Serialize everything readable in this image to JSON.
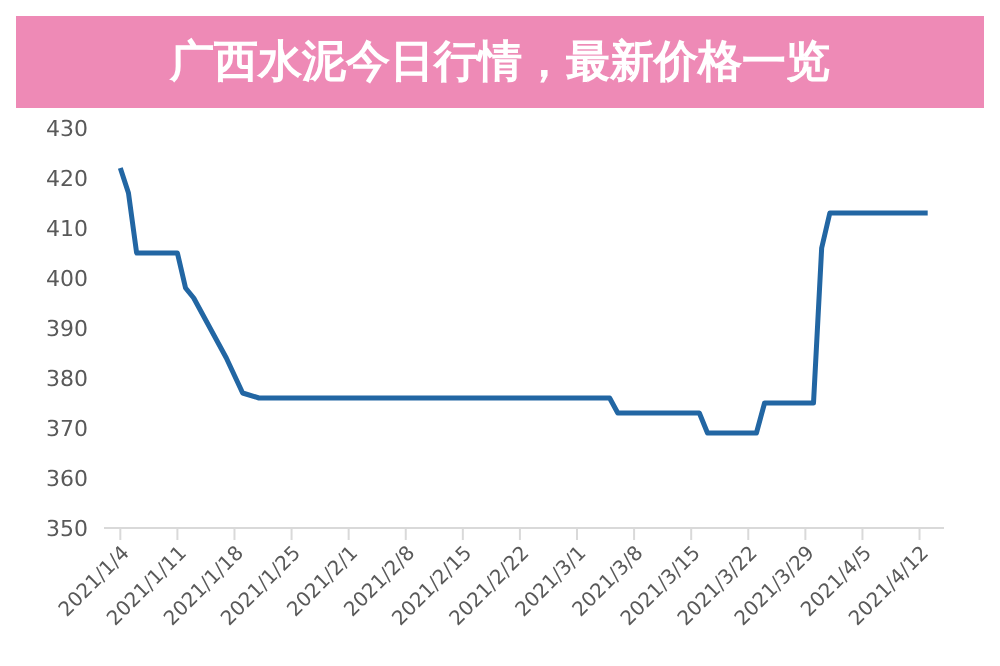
{
  "chart_data": {
    "type": "line",
    "title": "广西水泥今日行情，最新价格一览",
    "x": [
      "2021-01-04",
      "2021-01-05",
      "2021-01-06",
      "2021-01-11",
      "2021-01-12",
      "2021-01-13",
      "2021-01-17",
      "2021-01-19",
      "2021-01-21",
      "2021-03-05",
      "2021-03-06",
      "2021-03-16",
      "2021-03-17",
      "2021-03-23",
      "2021-03-24",
      "2021-03-30",
      "2021-03-31",
      "2021-04-01",
      "2021-04-13"
    ],
    "series": [
      {
        "color": "#2266a3",
        "values": [
          422,
          417,
          405,
          405,
          398,
          396,
          384,
          377,
          376,
          376,
          373,
          373,
          369,
          369,
          375,
          375,
          406,
          413,
          413
        ]
      }
    ],
    "xlim": [
      "2021-01-02",
      "2021-04-15"
    ],
    "xticks": [
      {
        "value": "2021-01-04",
        "label": "2021/1/4"
      },
      {
        "value": "2021-01-11",
        "label": "2021/1/11"
      },
      {
        "value": "2021-01-18",
        "label": "2021/1/18"
      },
      {
        "value": "2021-01-25",
        "label": "2021/1/25"
      },
      {
        "value": "2021-02-01",
        "label": "2021/2/1"
      },
      {
        "value": "2021-02-08",
        "label": "2021/2/8"
      },
      {
        "value": "2021-02-15",
        "label": "2021/2/15"
      },
      {
        "value": "2021-02-22",
        "label": "2021/2/22"
      },
      {
        "value": "2021-03-01",
        "label": "2021/3/1"
      },
      {
        "value": "2021-03-08",
        "label": "2021/3/8"
      },
      {
        "value": "2021-03-15",
        "label": "2021/3/15"
      },
      {
        "value": "2021-03-22",
        "label": "2021/3/22"
      },
      {
        "value": "2021-03-29",
        "label": "2021/3/29"
      },
      {
        "value": "2021-04-05",
        "label": "2021/4/5"
      },
      {
        "value": "2021-04-12",
        "label": "2021/4/12"
      }
    ],
    "ylim": [
      350,
      430
    ],
    "yticks": [
      350,
      360,
      370,
      380,
      390,
      400,
      410,
      420,
      430
    ],
    "grid": false,
    "legend": false,
    "marker": "none",
    "line_style": "solid"
  }
}
